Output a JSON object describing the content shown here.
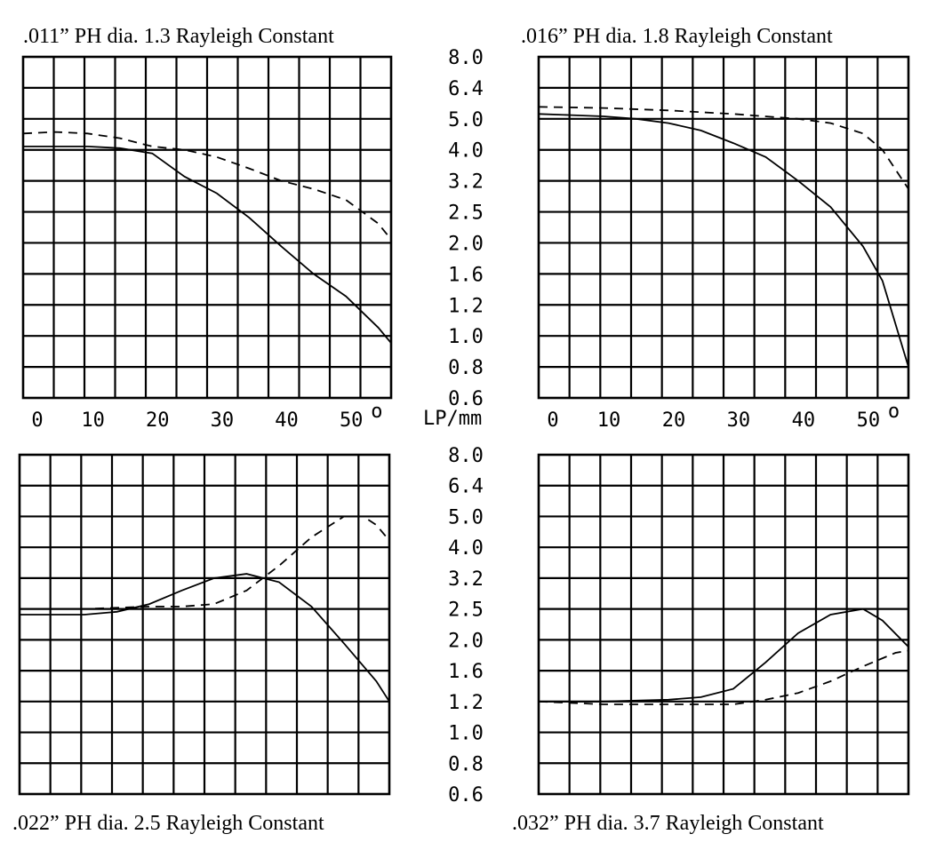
{
  "chart_data": [
    {
      "type": "line",
      "title": ".011” PH dia.  1.3 Rayleigh Constant",
      "x_tick_labels": [
        "0",
        "10",
        "20",
        "30",
        "40",
        "50"
      ],
      "degree_symbol": "o",
      "xlim": [
        0,
        57
      ],
      "y_tick_labels": [
        "8.0",
        "6.4",
        "5.0",
        "4.0",
        "3.2",
        "2.5",
        "2.0",
        "1.6",
        "1.2",
        "1.0",
        "0.8",
        "0.6"
      ],
      "y_unit": "LP/mm",
      "y_scale": "log",
      "grid": true,
      "series": [
        {
          "style": "solid",
          "x": [
            0,
            5,
            10,
            15,
            20,
            25,
            30,
            35,
            40,
            45,
            50,
            55,
            57
          ],
          "y": [
            4.1,
            4.1,
            4.1,
            4.05,
            3.9,
            3.3,
            2.9,
            2.4,
            1.95,
            1.6,
            1.3,
            1.05,
            0.95
          ]
        },
        {
          "style": "dashed",
          "x": [
            0,
            5,
            10,
            15,
            20,
            25,
            30,
            35,
            40,
            45,
            50,
            55,
            57
          ],
          "y": [
            4.5,
            4.55,
            4.5,
            4.35,
            4.1,
            4.0,
            3.8,
            3.5,
            3.2,
            3.0,
            2.75,
            2.3,
            2.05
          ]
        }
      ]
    },
    {
      "type": "line",
      "title": ".016” PH dia.  1.8 Rayleigh Constant",
      "x_tick_labels": [
        "0",
        "10",
        "20",
        "30",
        "40",
        "50"
      ],
      "degree_symbol": "o",
      "xlim": [
        0,
        57
      ],
      "y_tick_labels": [
        "8.0",
        "6.4",
        "5.0",
        "4.0",
        "3.2",
        "2.5",
        "2.0",
        "1.6",
        "1.2",
        "1.0",
        "0.8",
        "0.6"
      ],
      "y_unit": "LP/mm",
      "y_scale": "log",
      "grid": true,
      "series": [
        {
          "style": "solid",
          "x": [
            0,
            5,
            10,
            15,
            20,
            25,
            30,
            35,
            40,
            45,
            50,
            53,
            57
          ],
          "y": [
            5.2,
            5.15,
            5.1,
            5.0,
            4.85,
            4.6,
            4.2,
            3.8,
            3.2,
            2.6,
            1.95,
            1.5,
            0.8
          ]
        },
        {
          "style": "dashed",
          "x": [
            0,
            10,
            20,
            30,
            40,
            45,
            50,
            53,
            57
          ],
          "y": [
            5.5,
            5.45,
            5.35,
            5.2,
            5.0,
            4.85,
            4.5,
            4.0,
            3.0
          ]
        }
      ]
    },
    {
      "type": "line",
      "title": ".022” PH dia.   2.5 Rayleigh Constant",
      "x_tick_labels": [],
      "xlim": [
        0,
        57
      ],
      "y_tick_labels": [
        "8.0",
        "6.4",
        "5.0",
        "4.0",
        "3.2",
        "2.5",
        "2.0",
        "1.6",
        "1.2",
        "1.0",
        "0.8",
        "0.6"
      ],
      "y_unit": "LP/mm",
      "y_scale": "log",
      "grid": true,
      "series": [
        {
          "style": "solid",
          "x": [
            0,
            10,
            15,
            20,
            25,
            30,
            35,
            40,
            45,
            50,
            55,
            57
          ],
          "y": [
            2.4,
            2.4,
            2.45,
            2.6,
            2.9,
            3.2,
            3.3,
            3.1,
            2.55,
            1.95,
            1.45,
            1.2
          ]
        },
        {
          "style": "dashed",
          "x": [
            0,
            10,
            20,
            25,
            30,
            35,
            40,
            45,
            50,
            53,
            55,
            57
          ],
          "y": [
            2.5,
            2.5,
            2.55,
            2.55,
            2.6,
            2.9,
            3.5,
            4.3,
            5.0,
            5.0,
            4.7,
            4.2
          ]
        }
      ]
    },
    {
      "type": "line",
      "title": ".032” PH dia.  3.7 Rayleigh Constant",
      "x_tick_labels": [],
      "xlim": [
        0,
        57
      ],
      "y_tick_labels": [
        "8.0",
        "6.4",
        "5.0",
        "4.0",
        "3.2",
        "2.5",
        "2.0",
        "1.6",
        "1.2",
        "1.0",
        "0.8",
        "0.6"
      ],
      "y_unit": "LP/mm",
      "y_scale": "log",
      "grid": true,
      "series": [
        {
          "style": "solid",
          "x": [
            0,
            10,
            20,
            25,
            30,
            35,
            40,
            45,
            50,
            53,
            57
          ],
          "y": [
            1.2,
            1.2,
            1.22,
            1.25,
            1.35,
            1.7,
            2.1,
            2.4,
            2.5,
            2.3,
            1.9
          ]
        },
        {
          "style": "dashed",
          "x": [
            0,
            10,
            20,
            30,
            35,
            40,
            45,
            50,
            55,
            57
          ],
          "y": [
            1.2,
            1.18,
            1.18,
            1.18,
            1.22,
            1.3,
            1.45,
            1.65,
            1.82,
            1.85
          ]
        }
      ]
    }
  ]
}
